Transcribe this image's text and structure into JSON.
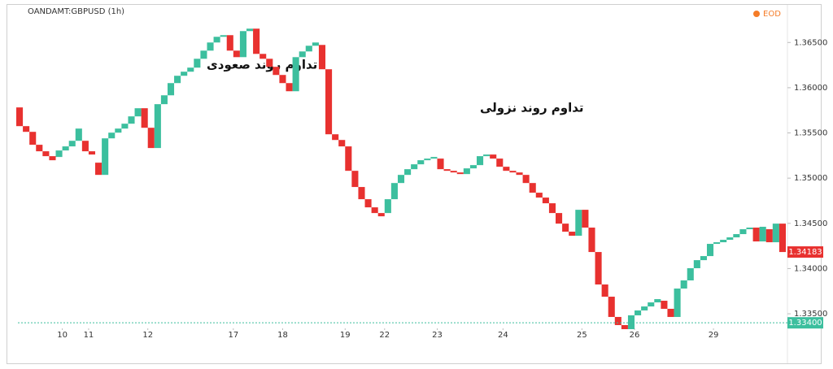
{
  "chart_data": {
    "type": "line_break",
    "title": "OANDAMT:GBPUSD (1h)",
    "badge": "EOD",
    "annotations": [
      "تداوم روند صعودی",
      "تداوم روند نزولی"
    ],
    "up_color": "#3cbf9e",
    "down_color": "#e8312f",
    "open": [
      1.35782,
      1.35575,
      1.35512,
      1.35369,
      1.35297,
      1.35243,
      1.35234,
      1.35306,
      1.35351,
      1.35413,
      1.35413,
      1.35297,
      1.35171,
      1.35036,
      1.3544,
      1.35503,
      1.35548,
      1.35602,
      1.35683,
      1.35773,
      1.35557,
      1.35333,
      1.35818,
      1.35916,
      1.36051,
      1.36132,
      1.36177,
      1.36222,
      1.3632,
      1.3641,
      1.365,
      1.36563,
      1.36581,
      1.3641,
      1.36338,
      1.36626,
      1.36653,
      1.36374,
      1.3632,
      1.36231,
      1.36141,
      1.36051,
      1.35961,
      1.36338,
      1.36401,
      1.36464,
      1.36473,
      1.36204,
      1.35485,
      1.35422,
      1.35351,
      1.35081,
      1.34902,
      1.34767,
      1.34677,
      1.34614,
      1.34614,
      1.34767,
      1.34946,
      1.35036,
      1.35099,
      1.35153,
      1.35198,
      1.35216,
      1.35216,
      1.35099,
      1.35081,
      1.35063,
      1.35045,
      1.35108,
      1.35144,
      1.35243,
      1.35261,
      1.35216,
      1.35126,
      1.35081,
      1.35063,
      1.35036,
      1.34946,
      1.34839,
      1.34785,
      1.34722,
      1.34614,
      1.34497,
      1.34408,
      1.34363,
      1.3465,
      1.34453,
      1.34183,
      1.33824,
      1.33689,
      1.33465,
      1.33375,
      1.3333,
      1.33483,
      1.33537,
      1.33581,
      1.33626,
      1.33644,
      1.33555,
      1.33465,
      1.33779,
      1.33869,
      1.34004,
      1.34093,
      1.34138,
      1.34273,
      1.34291,
      1.34318,
      1.34345,
      1.34381,
      1.34435,
      1.34453,
      1.343,
      1.34435,
      1.34291,
      1.34497
    ],
    "close": [
      1.35575,
      1.35512,
      1.35369,
      1.35297,
      1.35243,
      1.35198,
      1.35306,
      1.35351,
      1.35413,
      1.35548,
      1.35297,
      1.35261,
      1.35036,
      1.3544,
      1.35503,
      1.35548,
      1.35602,
      1.35683,
      1.35773,
      1.35557,
      1.35333,
      1.35818,
      1.35916,
      1.36051,
      1.36132,
      1.36177,
      1.36222,
      1.3632,
      1.3641,
      1.365,
      1.36563,
      1.36581,
      1.3641,
      1.36338,
      1.36626,
      1.36653,
      1.36374,
      1.3632,
      1.36231,
      1.36141,
      1.36051,
      1.35961,
      1.36338,
      1.36401,
      1.36464,
      1.365,
      1.36204,
      1.35485,
      1.35422,
      1.35351,
      1.35081,
      1.34902,
      1.34767,
      1.34677,
      1.34614,
      1.34578,
      1.34767,
      1.34946,
      1.35036,
      1.35099,
      1.35153,
      1.35198,
      1.35216,
      1.35234,
      1.35099,
      1.35081,
      1.35063,
      1.35045,
      1.35108,
      1.35144,
      1.35243,
      1.35261,
      1.35216,
      1.35126,
      1.35081,
      1.35063,
      1.35036,
      1.34946,
      1.34839,
      1.34785,
      1.34722,
      1.34614,
      1.34497,
      1.34408,
      1.34363,
      1.3465,
      1.34453,
      1.34183,
      1.33824,
      1.33689,
      1.33465,
      1.33375,
      1.3333,
      1.33483,
      1.33537,
      1.33581,
      1.33626,
      1.33662,
      1.33555,
      1.33465,
      1.33779,
      1.33869,
      1.34004,
      1.34093,
      1.34138,
      1.34273,
      1.34291,
      1.34318,
      1.34345,
      1.34381,
      1.34435,
      1.34453,
      1.343,
      1.34462,
      1.34291,
      1.34497,
      1.34183
    ],
    "last_price": 1.34183,
    "marker_line": {
      "value": 1.334,
      "label": "1.33400"
    },
    "xlim": [
      -0.5,
      116.5
    ],
    "xticks": [
      {
        "value": 6.5,
        "label": "10"
      },
      {
        "value": 10.5,
        "label": "11"
      },
      {
        "value": 19.5,
        "label": "12"
      },
      {
        "value": 32.5,
        "label": "17"
      },
      {
        "value": 40,
        "label": "18"
      },
      {
        "value": 49.5,
        "label": "19"
      },
      {
        "value": 55.5,
        "label": "22"
      },
      {
        "value": 63.5,
        "label": "23"
      },
      {
        "value": 73.5,
        "label": "24"
      },
      {
        "value": 85.5,
        "label": "25"
      },
      {
        "value": 93.5,
        "label": "26"
      },
      {
        "value": 105.5,
        "label": "29"
      }
    ],
    "ylim": [
      1.3315,
      1.3688
    ],
    "yticks": [
      {
        "value": 1.365,
        "label": "1.36500"
      },
      {
        "value": 1.36,
        "label": "1.36000"
      },
      {
        "value": 1.355,
        "label": "1.35500"
      },
      {
        "value": 1.35,
        "label": "1.35000"
      },
      {
        "value": 1.345,
        "label": "1.34500"
      },
      {
        "value": 1.34,
        "label": "1.34000"
      },
      {
        "value": 1.335,
        "label": "1.33500"
      }
    ]
  }
}
